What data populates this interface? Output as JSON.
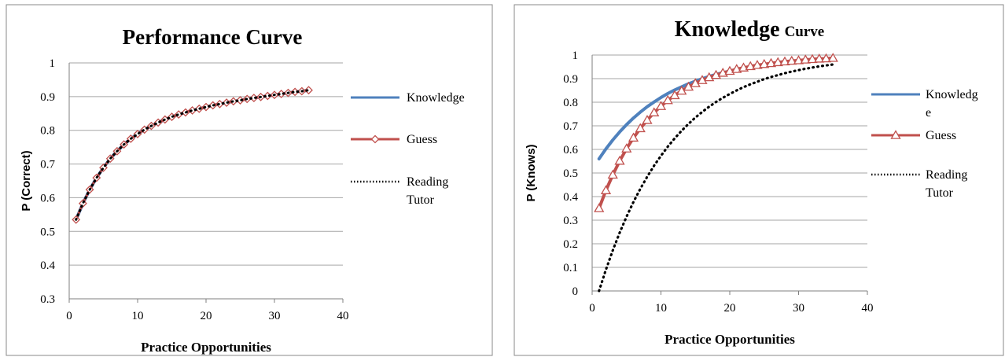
{
  "colors": {
    "knowledge": "#4f81bd",
    "guess": "#c0504d",
    "reading_tutor": "#000000",
    "grid": "#a6a6a6"
  },
  "chart_data": [
    {
      "type": "line",
      "title": "Performance Curve",
      "xlabel": "Practice Opportunities",
      "ylabel": "P (Correct)",
      "xlim": [
        0,
        40
      ],
      "ylim": [
        0.3,
        1
      ],
      "x_ticks": [
        "0",
        "10",
        "20",
        "30",
        "40"
      ],
      "y_ticks": [
        "0.3",
        "0.4",
        "0.5",
        "0.6",
        "0.7",
        "0.8",
        "0.9",
        "1"
      ],
      "grid": true,
      "legend": "right",
      "legend_entries": [
        {
          "label": "Knowledge"
        },
        {
          "label": "Guess"
        },
        {
          "label": "Reading",
          "label2": "Tutor"
        }
      ],
      "x": [
        1,
        2,
        3,
        4,
        5,
        6,
        7,
        8,
        9,
        10,
        11,
        12,
        13,
        14,
        15,
        16,
        17,
        18,
        19,
        20,
        21,
        22,
        23,
        24,
        25,
        26,
        27,
        28,
        29,
        30,
        31,
        32,
        33,
        34,
        35
      ],
      "series": [
        {
          "name": "Knowledge",
          "style": "solid",
          "marker": "none",
          "values": [
            0.535,
            0.583,
            0.624,
            0.659,
            0.689,
            0.716,
            0.738,
            0.758,
            0.775,
            0.789,
            0.802,
            0.813,
            0.823,
            0.832,
            0.84,
            0.847,
            0.853,
            0.859,
            0.864,
            0.869,
            0.874,
            0.878,
            0.882,
            0.886,
            0.889,
            0.893,
            0.896,
            0.899,
            0.902,
            0.905,
            0.908,
            0.911,
            0.914,
            0.916,
            0.919
          ]
        },
        {
          "name": "Guess",
          "style": "solid",
          "marker": "diamond",
          "values": [
            0.535,
            0.583,
            0.624,
            0.659,
            0.689,
            0.716,
            0.738,
            0.758,
            0.775,
            0.789,
            0.802,
            0.813,
            0.823,
            0.832,
            0.84,
            0.847,
            0.853,
            0.859,
            0.864,
            0.869,
            0.874,
            0.878,
            0.882,
            0.886,
            0.889,
            0.893,
            0.896,
            0.899,
            0.902,
            0.905,
            0.908,
            0.911,
            0.914,
            0.916,
            0.919
          ]
        },
        {
          "name": "Reading Tutor",
          "style": "dotted",
          "marker": "none",
          "values": [
            0.535,
            0.583,
            0.624,
            0.659,
            0.689,
            0.716,
            0.738,
            0.758,
            0.775,
            0.789,
            0.802,
            0.813,
            0.823,
            0.832,
            0.84,
            0.847,
            0.853,
            0.859,
            0.864,
            0.869,
            0.874,
            0.878,
            0.882,
            0.886,
            0.889,
            0.893,
            0.896,
            0.899,
            0.902,
            0.905,
            0.908,
            0.911,
            0.914,
            0.916,
            0.919
          ]
        }
      ]
    },
    {
      "type": "line",
      "title": "Knowledge",
      "title_suffix": "Curve",
      "xlabel": "Practice Opportunities",
      "ylabel": "P (Knows)",
      "xlim": [
        0,
        40
      ],
      "ylim": [
        0,
        1
      ],
      "x_ticks": [
        "0",
        "10",
        "20",
        "30",
        "40"
      ],
      "y_ticks": [
        "0",
        "0.1",
        "0.2",
        "0.3",
        "0.4",
        "0.5",
        "0.6",
        "0.7",
        "0.8",
        "0.9",
        "1"
      ],
      "grid": true,
      "legend": "right",
      "legend_entries": [
        {
          "label": "Knowledg",
          "label2": "e"
        },
        {
          "label": "Guess"
        },
        {
          "label": "Reading",
          "label2": "Tutor"
        }
      ],
      "x": [
        1,
        2,
        3,
        4,
        5,
        6,
        7,
        8,
        9,
        10,
        11,
        12,
        13,
        14,
        15,
        16,
        17,
        18,
        19,
        20,
        21,
        22,
        23,
        24,
        25,
        26,
        27,
        28,
        29,
        30,
        31,
        32,
        33,
        34,
        35
      ],
      "series": [
        {
          "name": "Knowledge",
          "style": "solid",
          "marker": "none",
          "values": [
            0.56,
            0.602,
            0.64,
            0.674,
            0.705,
            0.733,
            0.758,
            0.781,
            0.801,
            0.82,
            0.837,
            0.852,
            0.865,
            0.878,
            0.889,
            0.9,
            0.909,
            0.918,
            0.925,
            0.932,
            0.939,
            0.944,
            0.95,
            0.954,
            0.959,
            0.963,
            0.966,
            0.969,
            0.972,
            0.975,
            0.977,
            0.98,
            0.982,
            0.983,
            0.985
          ]
        },
        {
          "name": "Guess",
          "style": "solid",
          "marker": "triangle",
          "values": [
            0.35,
            0.426,
            0.492,
            0.551,
            0.603,
            0.649,
            0.689,
            0.724,
            0.756,
            0.783,
            0.808,
            0.829,
            0.848,
            0.865,
            0.88,
            0.893,
            0.905,
            0.915,
            0.924,
            0.932,
            0.94,
            0.946,
            0.952,
            0.957,
            0.961,
            0.965,
            0.969,
            0.972,
            0.975,
            0.977,
            0.98,
            0.982,
            0.984,
            0.985,
            0.987
          ]
        },
        {
          "name": "Reading Tutor",
          "style": "dotted",
          "marker": "none",
          "values": [
            0,
            0.09,
            0.172,
            0.247,
            0.315,
            0.377,
            0.433,
            0.484,
            0.531,
            0.573,
            0.612,
            0.647,
            0.679,
            0.708,
            0.735,
            0.759,
            0.781,
            0.801,
            0.819,
            0.835,
            0.85,
            0.864,
            0.876,
            0.887,
            0.898,
            0.907,
            0.915,
            0.923,
            0.93,
            0.936,
            0.942,
            0.947,
            0.952,
            0.956,
            0.96
          ]
        }
      ]
    }
  ]
}
